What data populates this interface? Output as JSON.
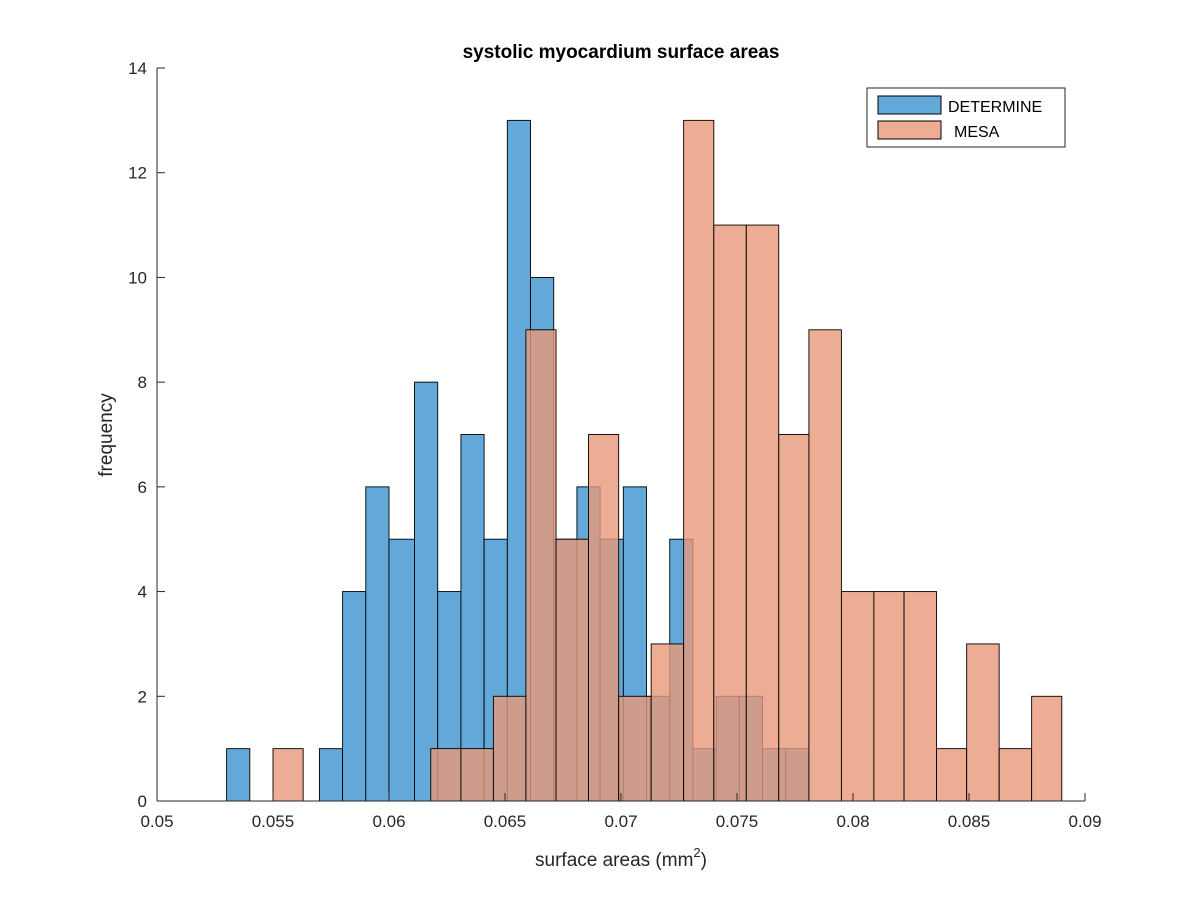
{
  "chart_data": {
    "type": "bar",
    "title": "systolic myocardium surface areas",
    "xlabel": "surface areas (mm",
    "xlabel_sup": "2",
    "xlabel_end": ")",
    "ylabel": "frequency",
    "xlim": [
      0.05,
      0.09
    ],
    "ylim": [
      0,
      14
    ],
    "xticks": [
      0.05,
      0.055,
      0.06,
      0.065,
      0.07,
      0.075,
      0.08,
      0.085,
      0.09
    ],
    "xtick_labels": [
      "0.05",
      "0.055",
      "0.06",
      "0.065",
      "0.07",
      "0.075",
      "0.08",
      "0.085",
      "0.09"
    ],
    "yticks": [
      0,
      2,
      4,
      6,
      8,
      10,
      12,
      14
    ],
    "ytick_labels": [
      "0",
      "2",
      "4",
      "6",
      "8",
      "10",
      "12",
      "14"
    ],
    "legend_position": "top-right",
    "grid": false,
    "series": [
      {
        "name": "DETERMINE",
        "color": "#0072BD",
        "fill": "#62A8D8",
        "bin_edges": [
          0.053,
          0.054,
          0.055,
          0.056,
          0.057,
          0.058,
          0.059,
          0.06,
          0.0611,
          0.0621,
          0.0631,
          0.0641,
          0.0651,
          0.0661,
          0.0671,
          0.0681,
          0.0691,
          0.0701,
          0.0711,
          0.0721,
          0.0731,
          0.0741,
          0.0751,
          0.0761,
          0.0771,
          0.0781,
          0.0791
        ],
        "counts": [
          1,
          0,
          0,
          0,
          1,
          4,
          6,
          5,
          8,
          4,
          7,
          5,
          13,
          10,
          5,
          6,
          5,
          6,
          2,
          5,
          1,
          2,
          2,
          1,
          1,
          0
        ]
      },
      {
        "name": "MESA",
        "color": "#D95319",
        "fill": "#E8987A",
        "bin_edges": [
          0.055,
          0.0563,
          0.0577,
          0.059,
          0.0604,
          0.0618,
          0.0631,
          0.0645,
          0.0659,
          0.0672,
          0.0686,
          0.0699,
          0.0713,
          0.0727,
          0.074,
          0.0754,
          0.0768,
          0.0781,
          0.0795,
          0.0809,
          0.0822,
          0.0836,
          0.0849,
          0.0863,
          0.0877,
          0.089
        ],
        "counts": [
          1,
          0,
          0,
          0,
          0,
          1,
          1,
          2,
          9,
          5,
          7,
          2,
          3,
          13,
          11,
          11,
          7,
          9,
          4,
          4,
          4,
          1,
          3,
          1,
          2
        ]
      }
    ]
  }
}
